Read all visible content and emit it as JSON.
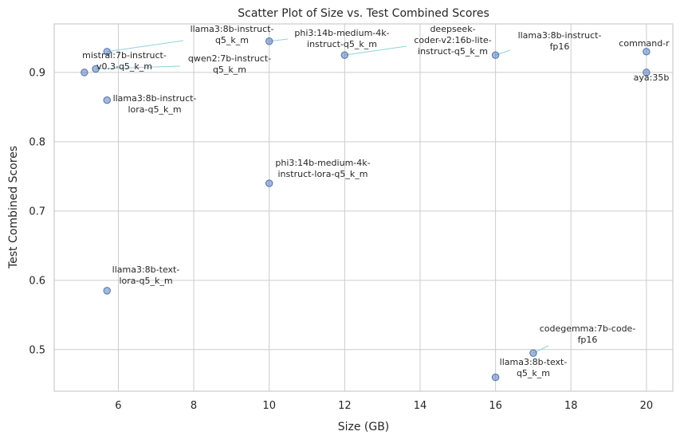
{
  "chart_data": {
    "type": "scatter",
    "title": "Scatter Plot of Size vs. Test Combined Scores",
    "xlabel": "Size (GB)",
    "ylabel": "Test Combined Scores",
    "xlim": [
      4.3,
      20.7
    ],
    "ylim": [
      0.44,
      0.97
    ],
    "xticks": [
      6,
      8,
      10,
      12,
      14,
      16,
      18,
      20
    ],
    "yticks": [
      0.5,
      0.6,
      0.7,
      0.8,
      0.9
    ],
    "grid": true,
    "points": [
      {
        "label": "llama3:8b-instruct-q5_k_m",
        "x": 5.7,
        "y": 0.93
      },
      {
        "label": "mistral:7b-instruct-v0.3-q5_k_m",
        "x": 5.1,
        "y": 0.9
      },
      {
        "label": "qwen2:7b-instruct-q5_k_m",
        "x": 5.4,
        "y": 0.905
      },
      {
        "label": "llama3:8b-instruct-lora-q5_k_m",
        "x": 5.7,
        "y": 0.86
      },
      {
        "label": "llama3:8b-text-lora-q5_k_m",
        "x": 5.7,
        "y": 0.585
      },
      {
        "label": "phi3:14b-medium-4k-instruct-q5_k_m",
        "x": 10.0,
        "y": 0.945
      },
      {
        "label": "phi3:14b-medium-4k-instruct-lora-q5_k_m",
        "x": 10.0,
        "y": 0.74
      },
      {
        "label": "deepseek-coder-v2:16b-lite-instruct-q5_k_m",
        "x": 12.0,
        "y": 0.925
      },
      {
        "label": "llama3:8b-instruct-fp16",
        "x": 16.0,
        "y": 0.925
      },
      {
        "label": "llama3:8b-text-q5_k_m",
        "x": 16.0,
        "y": 0.46
      },
      {
        "label": "codegemma:7b-code-fp16",
        "x": 17.0,
        "y": 0.495
      },
      {
        "label": "command-r",
        "x": 20.0,
        "y": 0.93
      },
      {
        "label": "aya:35b",
        "x": 20.0,
        "y": 0.9
      }
    ],
    "annotations": [
      {
        "lines": [
          "llama3:8b-instruct-",
          "q5_k_m"
        ]
      },
      {
        "lines": [
          "mistral:7b-instruct-",
          "v0.3-q5_k_m"
        ]
      },
      {
        "lines": [
          "qwen2:7b-instruct-",
          "q5_k_m"
        ]
      },
      {
        "lines": [
          "llama3:8b-instruct-",
          "lora-q5_k_m"
        ]
      },
      {
        "lines": [
          "llama3:8b-text-",
          "lora-q5_k_m"
        ]
      },
      {
        "lines": [
          "phi3:14b-medium-4k-",
          "instruct-q5_k_m"
        ]
      },
      {
        "lines": [
          "phi3:14b-medium-4k-",
          "instruct-lora-q5_k_m"
        ]
      },
      {
        "lines": [
          "deepseek-",
          "coder-v2:16b-lite-",
          "instruct-q5_k_m"
        ]
      },
      {
        "lines": [
          "llama3:8b-instruct-",
          "fp16"
        ]
      },
      {
        "lines": [
          "llama3:8b-text-",
          "q5_k_m"
        ]
      },
      {
        "lines": [
          "codegemma:7b-code-",
          "fp16"
        ]
      },
      {
        "lines": [
          "command-r"
        ]
      },
      {
        "lines": [
          "aya:35b"
        ]
      }
    ]
  }
}
